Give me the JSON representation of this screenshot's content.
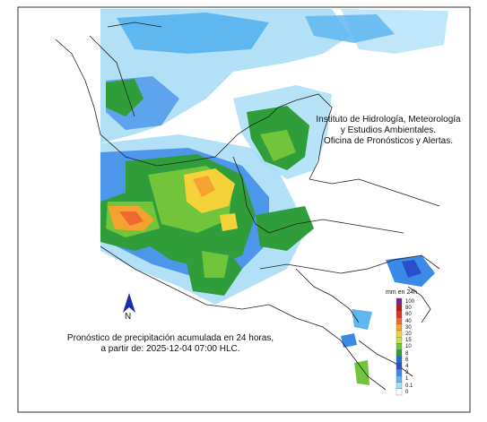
{
  "institution": {
    "lines": [
      "Instituto de Hidrología, Meteorología",
      "y Estudios Ambientales.",
      "Oficina de Pronósticos y Alertas."
    ]
  },
  "caption": {
    "lines": [
      "Pronóstico de precipitación acumulada en 24 horas,",
      "a partir de: 2025-12-04 07:00 HLC."
    ]
  },
  "north_arrow": {
    "label": "N",
    "color": "#1a2aa8"
  },
  "legend": {
    "title": "mm en 24h",
    "levels": [
      {
        "label": "100",
        "color": "#7a1fa0"
      },
      {
        "label": "80",
        "color": "#b01a1a"
      },
      {
        "label": "60",
        "color": "#e03020"
      },
      {
        "label": "40",
        "color": "#f06a30"
      },
      {
        "label": "30",
        "color": "#f4a230"
      },
      {
        "label": "20",
        "color": "#f6d23a"
      },
      {
        "label": "15",
        "color": "#c8e04a"
      },
      {
        "label": "10",
        "color": "#72c43a"
      },
      {
        "label": "8",
        "color": "#2f9e3a"
      },
      {
        "label": "6",
        "color": "#1f6fd0"
      },
      {
        "label": "4",
        "color": "#2a4fc8"
      },
      {
        "label": "2",
        "color": "#3b8ae8"
      },
      {
        "label": "1",
        "color": "#5fb7f0"
      },
      {
        "label": "0.1",
        "color": "#a5dcf6"
      },
      {
        "label": "0",
        "color": "#ffffff"
      }
    ]
  }
}
